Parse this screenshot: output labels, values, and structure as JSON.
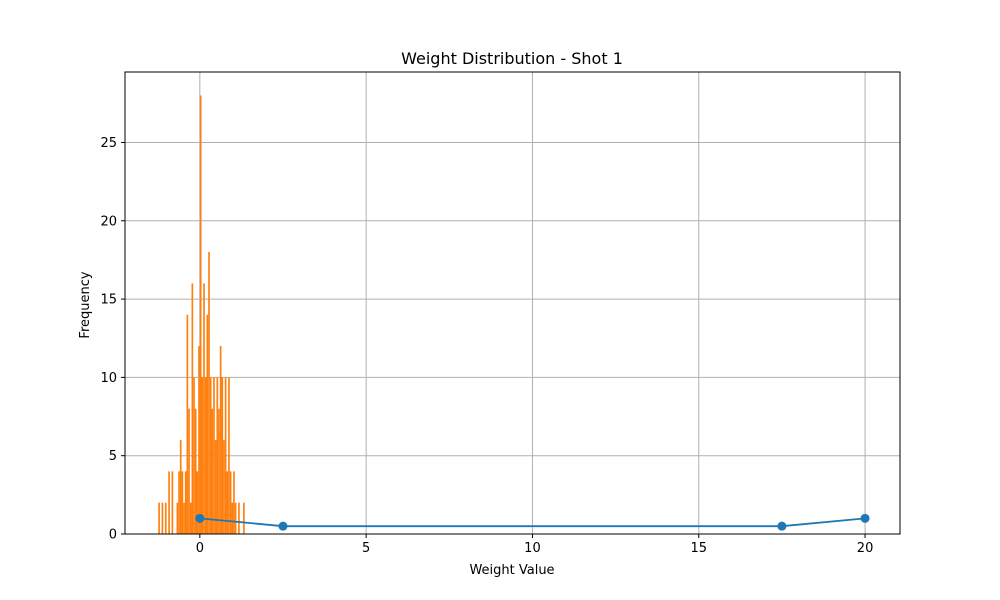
{
  "chart_data": {
    "type": "bar",
    "title": "Weight Distribution - Shot 1",
    "xlabel": "Weight Value",
    "ylabel": "Frequency",
    "xlim": [
      -2.25,
      21.05
    ],
    "ylim": [
      0,
      29.5
    ],
    "xticks": [
      0,
      5,
      10,
      15,
      20
    ],
    "yticks": [
      0,
      5,
      10,
      15,
      20,
      25
    ],
    "grid": true,
    "colors": {
      "histogram": "#ff7f0e",
      "line": "#1f77b4",
      "grid": "#b0b0b0"
    },
    "histogram": {
      "bin_width": 0.05,
      "bins": [
        [
          -1.25,
          2
        ],
        [
          -1.15,
          2
        ],
        [
          -1.05,
          2
        ],
        [
          -0.95,
          4
        ],
        [
          -0.85,
          4
        ],
        [
          -0.7,
          2
        ],
        [
          -0.65,
          4
        ],
        [
          -0.6,
          6
        ],
        [
          -0.55,
          4
        ],
        [
          -0.5,
          2
        ],
        [
          -0.45,
          4
        ],
        [
          -0.4,
          14
        ],
        [
          -0.35,
          8
        ],
        [
          -0.3,
          2
        ],
        [
          -0.25,
          16
        ],
        [
          -0.2,
          10
        ],
        [
          -0.15,
          8
        ],
        [
          -0.1,
          4
        ],
        [
          -0.05,
          12
        ],
        [
          0.0,
          28
        ],
        [
          0.05,
          10
        ],
        [
          0.1,
          16
        ],
        [
          0.15,
          10
        ],
        [
          0.2,
          14
        ],
        [
          0.25,
          18
        ],
        [
          0.3,
          10
        ],
        [
          0.35,
          8
        ],
        [
          0.4,
          10
        ],
        [
          0.45,
          6
        ],
        [
          0.5,
          10
        ],
        [
          0.55,
          8
        ],
        [
          0.6,
          12
        ],
        [
          0.65,
          10
        ],
        [
          0.7,
          6
        ],
        [
          0.75,
          10
        ],
        [
          0.8,
          4
        ],
        [
          0.85,
          10
        ],
        [
          0.9,
          4
        ],
        [
          0.95,
          2
        ],
        [
          1.0,
          4
        ],
        [
          1.05,
          2
        ],
        [
          1.15,
          2
        ],
        [
          1.3,
          2
        ]
      ]
    },
    "series": [
      {
        "x": [
          0,
          2.5,
          17.5,
          20
        ],
        "y": [
          1.0,
          0.5,
          0.5,
          1.0
        ]
      }
    ]
  }
}
